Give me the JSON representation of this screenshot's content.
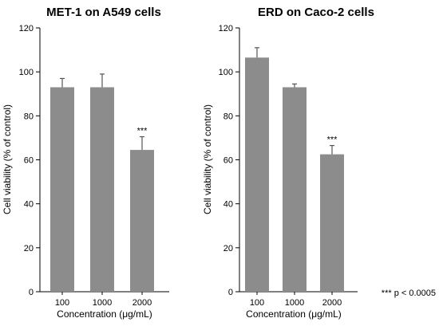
{
  "chart_data": [
    {
      "type": "bar",
      "title": "MET-1 on A549 cells",
      "xlabel": "Concentration (μg/mL)",
      "ylabel": "Cell viability (% of control)",
      "categories": [
        "100",
        "1000",
        "2000"
      ],
      "values": [
        93,
        93,
        64.5
      ],
      "errors": [
        4,
        6,
        6
      ],
      "annotations": [
        "",
        "",
        "***"
      ],
      "ylim": [
        0,
        120
      ],
      "yticks": [
        0,
        20,
        40,
        60,
        80,
        100,
        120
      ],
      "grid": false,
      "bar_color": "#8c8c8c"
    },
    {
      "type": "bar",
      "title": "ERD on Caco-2 cells",
      "xlabel": "Concentration (μg/mL)",
      "ylabel": "Cell viability (% of control)",
      "categories": [
        "100",
        "1000",
        "2000"
      ],
      "values": [
        106.5,
        93,
        62.5
      ],
      "errors": [
        4.5,
        1.5,
        4
      ],
      "annotations": [
        "",
        "",
        "***"
      ],
      "ylim": [
        0,
        120
      ],
      "yticks": [
        0,
        20,
        40,
        60,
        80,
        100,
        120
      ],
      "grid": false,
      "bar_color": "#8c8c8c"
    }
  ],
  "footnote": "*** p < 0.0005"
}
